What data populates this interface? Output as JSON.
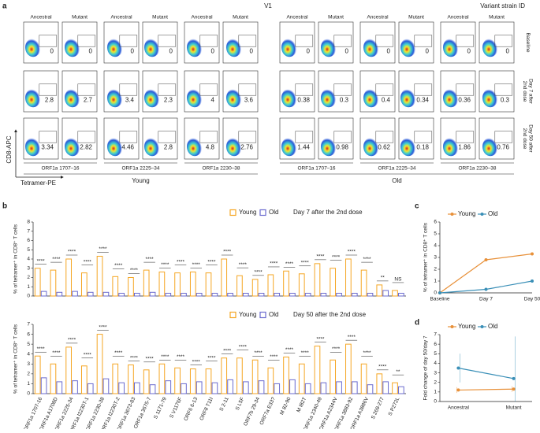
{
  "panel_a": {
    "label": "a",
    "title": "V1",
    "subtitle": "Variant strain ID",
    "columns": [
      "Ancestral",
      "Mutant"
    ],
    "rows": [
      {
        "label": [
          "Baseline"
        ],
        "values": [
          0,
          0,
          0,
          0,
          0,
          0,
          0,
          0,
          0,
          0,
          0,
          0
        ]
      },
      {
        "label": [
          "Day 7 after",
          "2nd dose"
        ],
        "values": [
          2.8,
          2.7,
          3.4,
          2.3,
          4,
          3.6,
          0.38,
          0.3,
          0.4,
          0.34,
          0.36,
          0.3
        ]
      },
      {
        "label": [
          "Day 50 after",
          "2nd dose"
        ],
        "values": [
          3.34,
          2.82,
          4.46,
          2.8,
          4.8,
          2.76,
          1.44,
          0.98,
          0.62,
          0.18,
          1.86,
          0.76
        ]
      }
    ],
    "peptides": [
      "ORF1a 1707–16",
      "ORF1a 2225–34",
      "ORF1a 2230–38"
    ],
    "groups": [
      "Young",
      "Old"
    ],
    "y_axis_label": "CD8-APC",
    "x_axis_label": "Tetramer-PE"
  },
  "chart_data": [
    {
      "type": "bar",
      "label": "b",
      "y_label": "% of tetramer⁺ in CD8⁺ T cells",
      "legend_note": "Day 7 after the 2nd dose",
      "ylim": [
        0,
        8
      ],
      "yticks": [
        0,
        1,
        2,
        3,
        4,
        5,
        6,
        7,
        8
      ],
      "series": [
        {
          "name": "Young",
          "color": "#f5a623",
          "values": [
            3.0,
            2.8,
            4.0,
            2.5,
            4.3,
            2.1,
            2.0,
            2.8,
            2.6,
            2.5,
            2.6,
            2.5,
            4.0,
            2.2,
            1.8,
            2.3,
            2.7,
            2.4,
            3.5,
            3.0,
            4.0,
            2.8,
            1.2,
            0.6
          ]
        },
        {
          "name": "Old",
          "color": "#6b6bcf",
          "values": [
            0.5,
            0.4,
            0.5,
            0.4,
            0.4,
            0.3,
            0.3,
            0.4,
            0.3,
            0.3,
            0.3,
            0.3,
            0.3,
            0.3,
            0.3,
            0.3,
            0.3,
            0.3,
            0.3,
            0.3,
            0.3,
            0.3,
            0.6,
            0.3
          ]
        }
      ],
      "annotations": [
        "****",
        "****",
        "****",
        "****",
        "****",
        "****",
        "****",
        "****",
        "****",
        "****",
        "****",
        "****",
        "****",
        "****",
        "****",
        "****",
        "****",
        "****",
        "****",
        "****",
        "****",
        "****",
        "**",
        "NS"
      ]
    },
    {
      "type": "bar",
      "y_label": "% of tetramer⁺ in CD8⁺ T cells",
      "legend_note": "Day 50 after the 2nd dose",
      "ylim": [
        0,
        7
      ],
      "yticks": [
        0,
        1,
        2,
        3,
        4,
        5,
        6,
        7
      ],
      "categories": [
        "ORF1a 1707-16",
        "ORF1a A1708D",
        "ORF1a 2225-34",
        "ORF1a I2230T-1",
        "ORF1a 2230-38",
        "ORF1a I2230T-2",
        "ORF1a 3673-83",
        "ORF1a 3675-7",
        "S 1171-79",
        "S V1176F",
        "ORF6 6-13",
        "ORF8 T11I",
        "S 2-11",
        "S L5F",
        "ORF7b 29-34",
        "ORF7a E33?",
        "M 82-90",
        "M I82T",
        "ORF1a 2340-49",
        "ORF1a A2344V",
        "ORF1a 3883-92",
        "ORF1a A3886V",
        "S 269-277",
        "S P272L"
      ],
      "series": [
        {
          "name": "Young",
          "color": "#f5a623",
          "values": [
            3.8,
            3.0,
            4.7,
            2.8,
            6.0,
            3.0,
            2.9,
            2.4,
            3.0,
            2.6,
            2.5,
            2.5,
            3.6,
            3.6,
            3.4,
            2.6,
            3.7,
            3.0,
            4.8,
            3.4,
            5.0,
            3.0,
            2.0,
            1.1
          ]
        },
        {
          "name": "Old",
          "color": "#6b6bcf",
          "values": [
            1.6,
            1.2,
            1.3,
            1.0,
            1.5,
            1.1,
            1.1,
            0.9,
            1.3,
            1.0,
            1.2,
            1.1,
            1.4,
            1.2,
            1.3,
            1.0,
            1.4,
            1.0,
            1.1,
            1.2,
            1.2,
            0.9,
            1.2,
            0.7
          ]
        }
      ],
      "annotations": [
        "****",
        "****",
        "****",
        "****",
        "****",
        "****",
        "****",
        "****",
        "****",
        "****",
        "****",
        "****",
        "****",
        "****",
        "****",
        "****",
        "****",
        "****",
        "****",
        "****",
        "****",
        "****",
        "****",
        "**"
      ]
    },
    {
      "type": "line",
      "label": "c",
      "y_label": "% of tetramer⁺ in CD8⁺ T cells",
      "categories": [
        "Baseline",
        "Day 7",
        "Day 50"
      ],
      "ylim": [
        0,
        6
      ],
      "yticks": [
        0,
        1,
        2,
        3,
        4,
        5,
        6
      ],
      "series": [
        {
          "name": "Young",
          "color": "#e8913a",
          "values": [
            0,
            2.8,
            3.3
          ]
        },
        {
          "name": "Old",
          "color": "#3a8fb7",
          "values": [
            0,
            0.3,
            1.0
          ]
        }
      ]
    },
    {
      "type": "line",
      "label": "d",
      "y_label": "Fold change of day 50/day 7",
      "categories": [
        "Ancestral",
        "Mutant"
      ],
      "ylim": [
        0,
        7
      ],
      "yticks": [
        0,
        1,
        2,
        3,
        4,
        5,
        6,
        7
      ],
      "series": [
        {
          "name": "Young",
          "color": "#e8913a",
          "values": [
            1.2,
            1.3
          ],
          "errors": [
            0.3,
            0.3
          ]
        },
        {
          "name": "Old",
          "color": "#3a8fb7",
          "values": [
            3.5,
            2.4
          ],
          "errors": [
            1.5,
            4.4
          ]
        }
      ]
    }
  ]
}
